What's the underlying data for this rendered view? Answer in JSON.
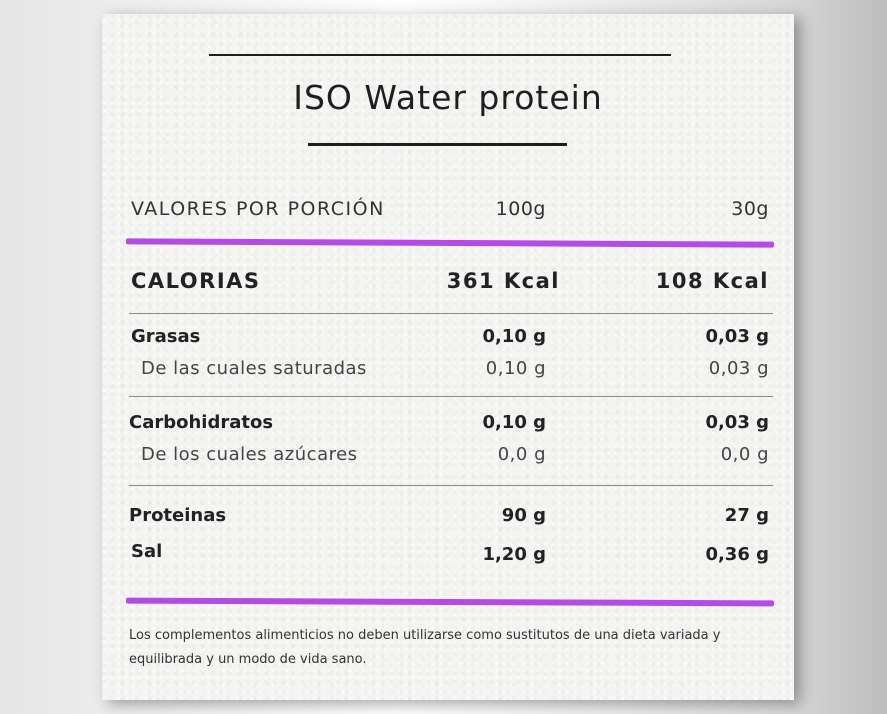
{
  "title": "ISO Water protein",
  "header": {
    "label": "VALORES POR PORCIÓN",
    "col1": "100g",
    "col2": "30g"
  },
  "calorias": {
    "label": "CALORIAS",
    "v100": "361 Kcal",
    "v30": "108 Kcal"
  },
  "grasas": {
    "label": "Grasas",
    "v100": "0,10 g",
    "v30": "0,03 g",
    "sub_label": "De las cuales saturadas",
    "sub_v100": "0,10 g",
    "sub_v30": "0,03 g"
  },
  "carbohidratos": {
    "label": "Carbohidratos",
    "v100": "0,10 g",
    "v30": "0,03 g",
    "sub_label": "De los cuales azúcares",
    "sub_v100": "0,0 g",
    "sub_v30": "0,0 g"
  },
  "proteinas": {
    "label": "Proteinas",
    "v100": "90 g",
    "v30": "27 g"
  },
  "sal": {
    "label": "Sal",
    "v100": "1,20 g",
    "v30": "0,36 g"
  },
  "footer": "Los complementos alimenticios no deben utilizarse como sustitutos de una dieta variada y equilibrada y un modo de vida sano.",
  "colors": {
    "accent": "#b44be5",
    "text": "#222222",
    "rule": "#1d1d1d"
  }
}
